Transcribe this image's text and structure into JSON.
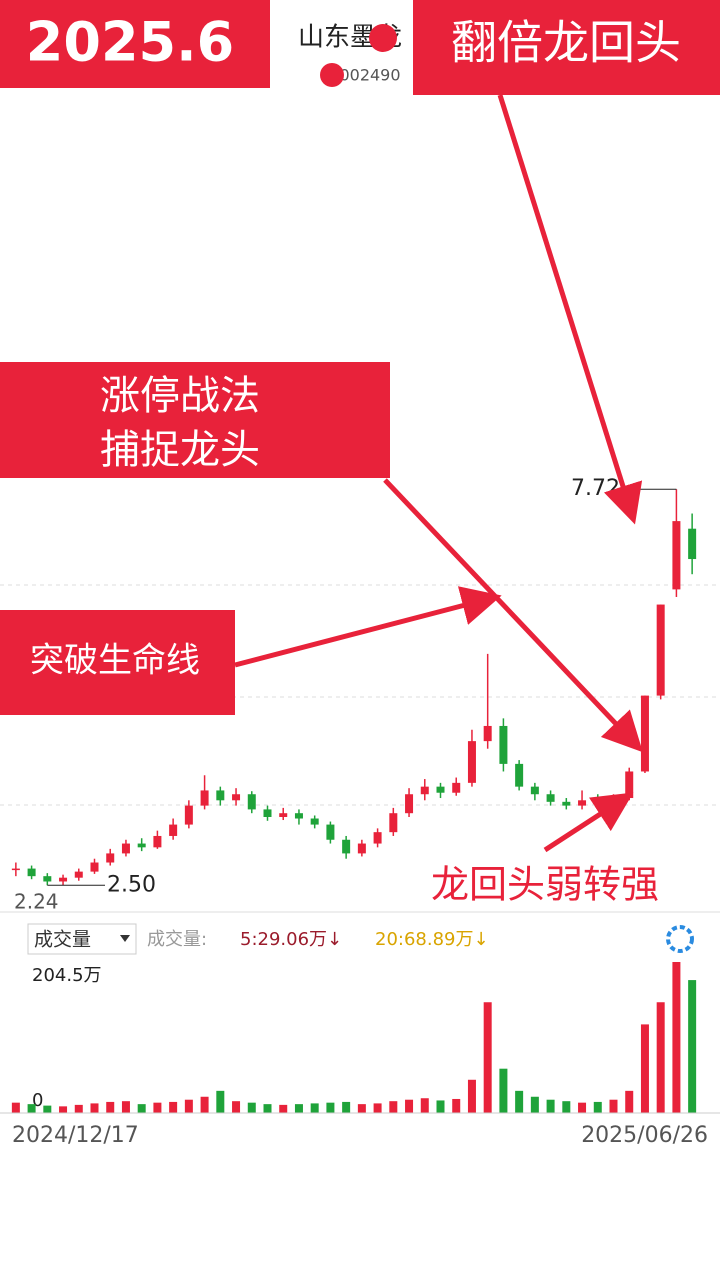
{
  "overlay": {
    "banner_left": "2025.6",
    "banner_right": "翻倍龙回头",
    "stock_name": "山东墨龙",
    "stock_code": "002490",
    "callout_1": [
      "涨停战法",
      "捕捉龙头"
    ],
    "callout_2": "突破生命线",
    "callout_3": "龙回头弱转强"
  },
  "chart_data": [
    {
      "type": "candlestick",
      "categories": [
        "2024/12/17",
        null,
        null,
        null,
        null,
        null,
        null,
        null,
        null,
        null,
        null,
        null,
        null,
        null,
        null,
        null,
        null,
        null,
        null,
        null,
        null,
        null,
        null,
        null,
        null,
        null,
        null,
        null,
        null,
        null,
        null,
        null,
        null,
        null,
        null,
        null,
        null,
        null,
        null,
        null,
        null,
        null,
        null,
        "2025/06/26"
      ],
      "open": [
        2.7,
        2.72,
        2.62,
        2.55,
        2.6,
        2.68,
        2.8,
        2.92,
        3.05,
        3.0,
        3.15,
        3.3,
        3.55,
        3.75,
        3.62,
        3.7,
        3.5,
        3.4,
        3.45,
        3.38,
        3.3,
        3.1,
        2.92,
        3.05,
        3.2,
        3.45,
        3.7,
        3.8,
        3.72,
        3.85,
        4.4,
        4.6,
        4.1,
        3.8,
        3.7,
        3.6,
        3.55,
        3.62,
        3.58,
        3.65,
        4.0,
        5.0,
        6.4,
        7.2
      ],
      "close": [
        2.72,
        2.62,
        2.55,
        2.6,
        2.68,
        2.8,
        2.92,
        3.05,
        3.0,
        3.15,
        3.3,
        3.55,
        3.75,
        3.62,
        3.7,
        3.5,
        3.4,
        3.45,
        3.38,
        3.3,
        3.1,
        2.92,
        3.05,
        3.2,
        3.45,
        3.7,
        3.8,
        3.72,
        3.85,
        4.4,
        4.6,
        4.1,
        3.8,
        3.7,
        3.6,
        3.55,
        3.62,
        3.58,
        3.65,
        4.0,
        5.0,
        6.2,
        7.3,
        6.8
      ],
      "low": [
        2.62,
        2.58,
        2.5,
        2.5,
        2.56,
        2.65,
        2.76,
        2.88,
        2.95,
        2.98,
        3.1,
        3.25,
        3.5,
        3.55,
        3.55,
        3.45,
        3.35,
        3.36,
        3.3,
        3.25,
        3.05,
        2.85,
        2.88,
        3.0,
        3.15,
        3.4,
        3.62,
        3.65,
        3.68,
        3.8,
        4.3,
        4.0,
        3.75,
        3.62,
        3.55,
        3.5,
        3.5,
        3.52,
        3.52,
        3.62,
        3.98,
        4.95,
        6.3,
        6.6
      ],
      "high": [
        2.8,
        2.76,
        2.66,
        2.64,
        2.72,
        2.85,
        2.98,
        3.1,
        3.12,
        3.22,
        3.38,
        3.62,
        3.95,
        3.8,
        3.78,
        3.74,
        3.55,
        3.52,
        3.5,
        3.42,
        3.34,
        3.15,
        3.1,
        3.25,
        3.52,
        3.78,
        3.9,
        3.85,
        3.92,
        4.55,
        5.55,
        4.7,
        4.15,
        3.85,
        3.75,
        3.65,
        3.75,
        3.7,
        3.7,
        4.05,
        5.0,
        6.2,
        7.72,
        7.4
      ],
      "up_color": "#e8223a",
      "down_color": "#1fa33a",
      "ylim": [
        2.24,
        8.0
      ],
      "yticks": [
        2.24
      ],
      "high_label": 7.72,
      "low_label": {
        "value": 2.5,
        "label": "2.50"
      }
    },
    {
      "type": "bar",
      "dropdown": "成交量",
      "legend_title": "成交量:",
      "ma_labels": [
        {
          "text": "5:29.06万↓",
          "color": "#9b1c2c"
        },
        {
          "text": "20:68.89万↓",
          "color": "#d9a400"
        }
      ],
      "values": [
        14,
        12,
        10,
        9,
        11,
        13,
        15,
        16,
        12,
        14,
        15,
        18,
        22,
        30,
        16,
        14,
        12,
        11,
        12,
        13,
        14,
        15,
        12,
        13,
        16,
        18,
        20,
        17,
        19,
        45,
        150,
        60,
        30,
        22,
        18,
        16,
        14,
        15,
        18,
        30,
        120,
        150,
        204.5,
        180
      ],
      "ylim": [
        0,
        204.5
      ],
      "yticks": [
        {
          "value": 204.5,
          "label": "204.5万"
        },
        0
      ]
    }
  ]
}
